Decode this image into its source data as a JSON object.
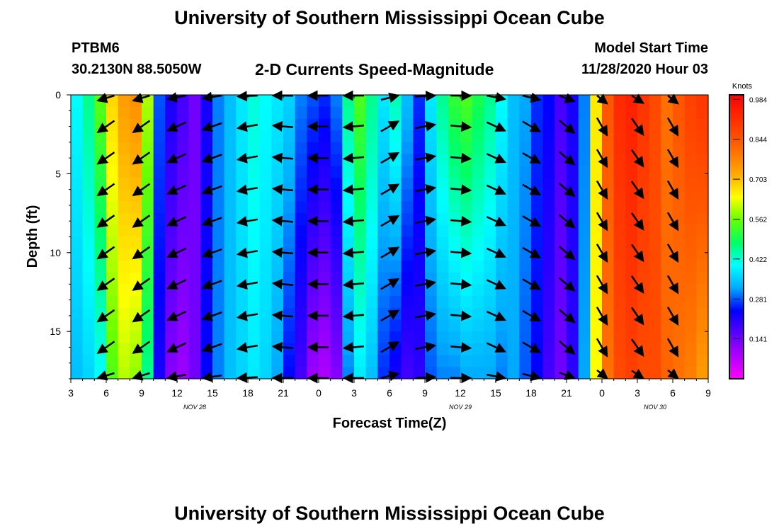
{
  "header": {
    "title": "University of Southern Mississippi Ocean Cube",
    "station": "PTBM6",
    "coords": "30.2130N 88.5050W",
    "subtitle": "2-D Currents Speed-Magnitude",
    "run_label": "Model Start Time",
    "run_time": "11/28/2020 Hour 03"
  },
  "footer": {
    "title": "University of Southern Mississippi Ocean Cube"
  },
  "chart_data": {
    "type": "heatmap",
    "xlabel": "Forecast Time(Z)",
    "ylabel": "Depth (ft)",
    "x_ticks": [
      "3",
      "6",
      "9",
      "12",
      "15",
      "18",
      "21",
      "0",
      "3",
      "6",
      "9",
      "12",
      "15",
      "18",
      "21",
      "0",
      "3",
      "6",
      "9"
    ],
    "x_hours": [
      0,
      3,
      6,
      9,
      12,
      15,
      18,
      21,
      24,
      27,
      30,
      33,
      36,
      39,
      42,
      45,
      48,
      51,
      54
    ],
    "date_labels": [
      {
        "label": "NOV 28",
        "hour": 10.5
      },
      {
        "label": "NOV 29",
        "hour": 33
      },
      {
        "label": "NOV 30",
        "hour": 49.5
      }
    ],
    "y_ticks": [
      0,
      5,
      10,
      15
    ],
    "ylim": [
      0,
      18
    ],
    "xlim_hours": [
      0,
      54
    ],
    "colorbar": {
      "unit": "Knots",
      "ticks": [
        "0.984",
        "0.844",
        "0.703",
        "0.562",
        "0.422",
        "0.281",
        "0.141"
      ],
      "range": [
        0.0,
        1.0
      ]
    },
    "speed_profile": {
      "hours": [
        0,
        1,
        2,
        3,
        4,
        5,
        6,
        7,
        8,
        9,
        10,
        11,
        12,
        13,
        14,
        15,
        16,
        17,
        18,
        19,
        20,
        21,
        22,
        23,
        24,
        25,
        26,
        27,
        28,
        29,
        30,
        31,
        32,
        33,
        34,
        35,
        36,
        37,
        38,
        39,
        40,
        41,
        42,
        43,
        44,
        45,
        46,
        47,
        48,
        49,
        50,
        51,
        52,
        53,
        54
      ],
      "surface": [
        0.4,
        0.46,
        0.55,
        0.68,
        0.74,
        0.76,
        0.6,
        0.28,
        0.22,
        0.18,
        0.14,
        0.22,
        0.3,
        0.34,
        0.38,
        0.42,
        0.4,
        0.38,
        0.36,
        0.3,
        0.28,
        0.26,
        0.3,
        0.46,
        0.54,
        0.46,
        0.38,
        0.44,
        0.34,
        0.26,
        0.38,
        0.46,
        0.52,
        0.54,
        0.5,
        0.46,
        0.4,
        0.34,
        0.32,
        0.26,
        0.24,
        0.18,
        0.22,
        0.3,
        0.66,
        0.84,
        0.92,
        0.94,
        0.9,
        0.86,
        0.8,
        0.84,
        0.88,
        0.9,
        0.86
      ],
      "bottom": [
        0.34,
        0.36,
        0.4,
        0.54,
        0.6,
        0.58,
        0.46,
        0.22,
        0.12,
        0.1,
        0.14,
        0.24,
        0.3,
        0.34,
        0.36,
        0.38,
        0.36,
        0.32,
        0.24,
        0.18,
        0.1,
        0.08,
        0.12,
        0.3,
        0.38,
        0.34,
        0.26,
        0.22,
        0.18,
        0.2,
        0.28,
        0.3,
        0.3,
        0.32,
        0.32,
        0.32,
        0.3,
        0.32,
        0.28,
        0.24,
        0.18,
        0.14,
        0.2,
        0.32,
        0.64,
        0.8,
        0.86,
        0.88,
        0.86,
        0.86,
        0.82,
        0.8,
        0.78,
        0.74,
        0.7
      ]
    },
    "vectors": {
      "hours": [
        0,
        3,
        6,
        9,
        12,
        15,
        18,
        21,
        24,
        27,
        30,
        33,
        36,
        39,
        42,
        45,
        48,
        51,
        54
      ],
      "depths": [
        0,
        2,
        4,
        6,
        8,
        10,
        12,
        14,
        16,
        18
      ],
      "angles_deg": [
        200,
        215,
        215,
        205,
        200,
        190,
        175,
        180,
        185,
        30,
        10,
        355,
        335,
        330,
        320,
        300,
        305,
        300,
        290
      ]
    }
  }
}
